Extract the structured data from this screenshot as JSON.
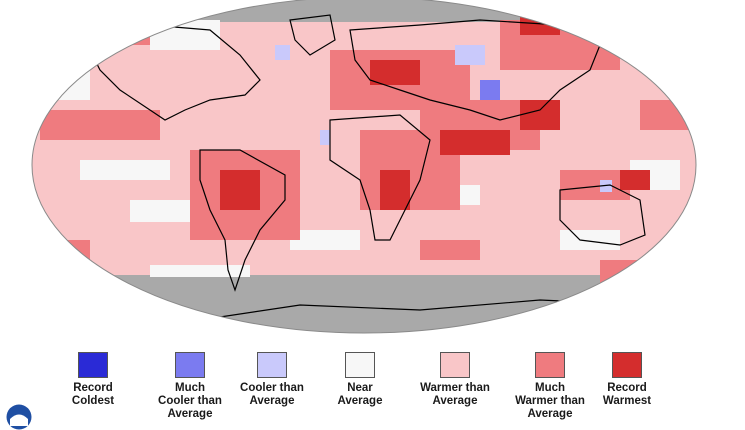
{
  "map": {
    "land_outline_color": "#000000",
    "no_data_color": "#a9a9a9",
    "ocean_color": "#ffffff"
  },
  "legend": {
    "items": [
      {
        "key": "record-coldest",
        "label": "Record\nColdest",
        "color": "#2a2ad6"
      },
      {
        "key": "much-cooler",
        "label": "Much\nCooler than\nAverage",
        "color": "#7b7bf0"
      },
      {
        "key": "cooler",
        "label": "Cooler than\nAverage",
        "color": "#c9c9fb"
      },
      {
        "key": "near",
        "label": "Near\nAverage",
        "color": "#f7f7f7"
      },
      {
        "key": "warmer",
        "label": "Warmer than\nAverage",
        "color": "#f9c6c8"
      },
      {
        "key": "much-warmer",
        "label": "Much\nWarmer than\nAverage",
        "color": "#ef7b7f"
      },
      {
        "key": "record-warmest",
        "label": "Record\nWarmest",
        "color": "#d42d2d"
      }
    ]
  },
  "logo": {
    "name": "noaa-logo-icon",
    "color": "#1f4fa3"
  }
}
